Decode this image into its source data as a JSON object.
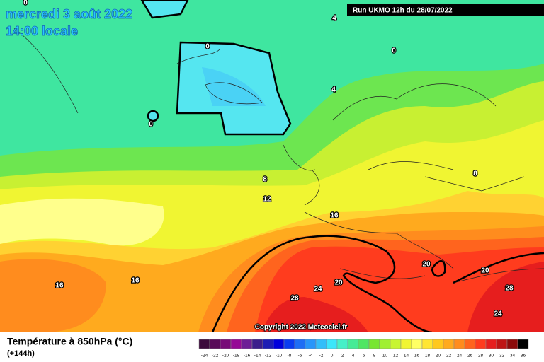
{
  "header": {
    "date": "mercredi 3 août 2022",
    "time": "14:00 locale",
    "run": "Run UKMO 12h du 28/07/2022"
  },
  "contour_labels": [
    "0",
    "4",
    "0",
    "0",
    "4",
    "0",
    "8",
    "12",
    "8",
    "16",
    "20",
    "20",
    "16",
    "16",
    "24",
    "20",
    "28",
    "28",
    "24"
  ],
  "copyright": "Copyright 2022 Meteociel.fr",
  "legend": {
    "title": "Température à 850hPa (°C)",
    "lead": "(+144h)"
  },
  "colorbar": {
    "ticks": [
      -24,
      -22,
      -20,
      -18,
      -16,
      -14,
      -12,
      -10,
      -8,
      -6,
      -4,
      -2,
      0,
      2,
      4,
      6,
      8,
      10,
      12,
      14,
      16,
      18,
      20,
      22,
      24,
      26,
      28,
      30,
      32,
      34,
      36
    ],
    "colors": [
      "#3c0a3c",
      "#5a0a5a",
      "#780a78",
      "#960a96",
      "#6e1e96",
      "#3c1e8c",
      "#1e1eb4",
      "#0000dc",
      "#0a3cf0",
      "#1e6ef5",
      "#2896fa",
      "#32befa",
      "#3ce6fa",
      "#46f0c8",
      "#46eb96",
      "#50e664",
      "#78e632",
      "#a0f032",
      "#c8f532",
      "#f0f532",
      "#ffff64",
      "#ffe632",
      "#ffc81e",
      "#ffaa1e",
      "#ff8c1e",
      "#ff641e",
      "#ff3c1e",
      "#e61e1e",
      "#be1414",
      "#8c0a0a",
      "#000000"
    ]
  }
}
